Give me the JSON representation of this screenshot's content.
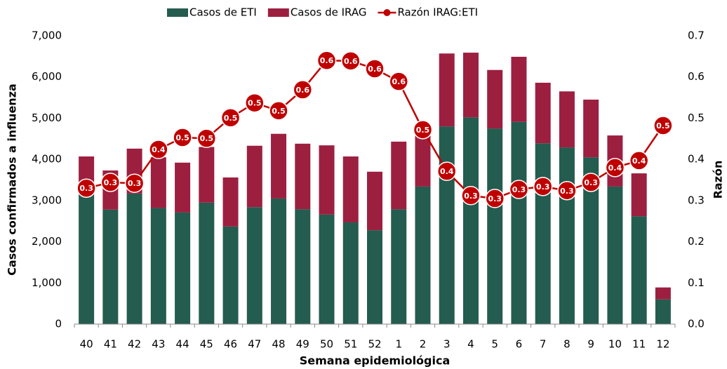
{
  "chart_data": {
    "type": "bar",
    "x_label": "Semana epidemiológica",
    "y_label": "Casos confirmados a influenza",
    "y2_label": "Razón",
    "categories": [
      "40",
      "41",
      "42",
      "43",
      "44",
      "45",
      "46",
      "47",
      "48",
      "49",
      "50",
      "51",
      "52",
      "1",
      "2",
      "3",
      "4",
      "5",
      "6",
      "7",
      "8",
      "9",
      "10",
      "11",
      "12"
    ],
    "series": [
      {
        "name": "Casos de ETI",
        "color": "#245c4f",
        "values": [
          3150,
          2780,
          3170,
          2820,
          2710,
          2950,
          2370,
          2840,
          3050,
          2790,
          2660,
          2470,
          2280,
          2790,
          3340,
          4800,
          5020,
          4750,
          4910,
          4390,
          4290,
          4050,
          3340,
          2620,
          600
        ]
      },
      {
        "name": "Casos de IRAG",
        "color": "#9d1f3f",
        "values": [
          920,
          950,
          1090,
          1230,
          1210,
          1350,
          1190,
          1490,
          1570,
          1590,
          1680,
          1600,
          1420,
          1640,
          1260,
          1770,
          1570,
          1420,
          1580,
          1470,
          1360,
          1400,
          1240,
          1040,
          290
        ]
      },
      {
        "name": "Razón IRAG:ETI",
        "color": "#c00000",
        "type": "line",
        "axis": "y2",
        "values": [
          0.33,
          0.344,
          0.342,
          0.424,
          0.453,
          0.451,
          0.501,
          0.537,
          0.518,
          0.569,
          0.64,
          0.639,
          0.62,
          0.589,
          0.472,
          0.371,
          0.312,
          0.305,
          0.327,
          0.334,
          0.324,
          0.344,
          0.38,
          0.397,
          0.482
        ],
        "value_labels": [
          "0.3",
          "0.3",
          "0.3",
          "0.4",
          "0.5",
          "0.5",
          "0.5",
          "0.5",
          "0.5",
          "0.6",
          "0.6",
          "0.6",
          "0.6",
          "0.6",
          "0.5",
          "0.4",
          "0.3",
          "0.3",
          "0.3",
          "0.3",
          "0.3",
          "0.3",
          "0.4",
          "0.4",
          "0.5"
        ]
      }
    ],
    "stacked": true,
    "ylim": [
      0,
      7000
    ],
    "yticks": [
      0,
      {
        "value": 1000,
        "label": "1,000"
      },
      {
        "value": 2000,
        "label": "2,000"
      },
      {
        "value": 3000,
        "label": "3,000"
      },
      {
        "value": 4000,
        "label": "4,000"
      },
      {
        "value": 5000,
        "label": "5,000"
      },
      {
        "value": 6000,
        "label": "6,000"
      },
      {
        "value": 7000,
        "label": "7,000"
      }
    ],
    "y2lim": [
      0,
      0.7
    ],
    "y2ticks": [
      {
        "value": 0,
        "label": "0.0"
      },
      0.1,
      0.2,
      0.3,
      0.4,
      0.5,
      0.6,
      0.7
    ],
    "legend": "top"
  }
}
